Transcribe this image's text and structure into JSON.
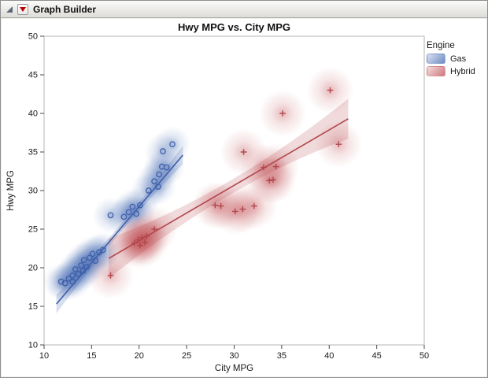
{
  "window": {
    "title": "Graph Builder"
  },
  "chart_data": {
    "type": "scatter",
    "title": "Hwy MPG vs. City MPG",
    "xlabel": "City MPG",
    "ylabel": "Hwy MPG",
    "xlim": [
      10,
      50
    ],
    "ylim": [
      10,
      50
    ],
    "xticks": [
      10,
      15,
      20,
      25,
      30,
      35,
      40,
      45,
      50
    ],
    "yticks": [
      10,
      15,
      20,
      25,
      30,
      35,
      40,
      45,
      50
    ],
    "grid": false,
    "legend": {
      "title": "Engine",
      "position": "right"
    },
    "series": [
      {
        "name": "Gas",
        "marker": "circle",
        "color": "#3E5FA9",
        "density_color": "#4A6FB5",
        "density_radius": 23,
        "points": [
          [
            11.8,
            18.2
          ],
          [
            12.2,
            18.0
          ],
          [
            12.6,
            18.6
          ],
          [
            13.0,
            19.0
          ],
          [
            13.0,
            18.2
          ],
          [
            13.3,
            19.8
          ],
          [
            13.6,
            19.2
          ],
          [
            13.9,
            20.3
          ],
          [
            14.1,
            19.6
          ],
          [
            14.2,
            21.0
          ],
          [
            14.5,
            20.1
          ],
          [
            14.8,
            21.3
          ],
          [
            15.1,
            21.8
          ],
          [
            15.4,
            20.9
          ],
          [
            15.8,
            22.0
          ],
          [
            16.2,
            22.3
          ],
          [
            17.0,
            26.8
          ],
          [
            18.4,
            26.6
          ],
          [
            18.9,
            27.2
          ],
          [
            19.3,
            27.9
          ],
          [
            19.7,
            27.0
          ],
          [
            20.1,
            28.1
          ],
          [
            21.0,
            30.0
          ],
          [
            21.6,
            31.2
          ],
          [
            22.0,
            30.5
          ],
          [
            22.1,
            32.1
          ],
          [
            22.4,
            33.1
          ],
          [
            22.9,
            33.0
          ],
          [
            22.5,
            35.1
          ],
          [
            23.5,
            36.0
          ]
        ],
        "fit": {
          "x": [
            11.3,
            24.6
          ],
          "y": [
            15.3,
            34.6
          ],
          "band_mid": 0.5,
          "band_end": 1.2
        }
      },
      {
        "name": "Hybrid",
        "marker": "plus",
        "color": "#B2474D",
        "density_color": "#C4565B",
        "density_radius": 30,
        "points": [
          [
            17.0,
            19.0
          ],
          [
            19.5,
            23.2
          ],
          [
            19.9,
            23.6
          ],
          [
            20.3,
            23.9
          ],
          [
            20.6,
            23.3
          ],
          [
            20.1,
            22.9
          ],
          [
            20.8,
            24.1
          ],
          [
            21.6,
            25.0
          ],
          [
            28.0,
            28.1
          ],
          [
            28.6,
            28.0
          ],
          [
            30.1,
            27.3
          ],
          [
            30.9,
            27.6
          ],
          [
            31.0,
            35.0
          ],
          [
            32.1,
            28.0
          ],
          [
            33.1,
            33.0
          ],
          [
            34.4,
            33.1
          ],
          [
            33.7,
            31.3
          ],
          [
            34.1,
            31.4
          ],
          [
            35.1,
            40.0
          ],
          [
            40.1,
            43.0
          ],
          [
            41.0,
            36.0
          ]
        ],
        "fit": {
          "x": [
            16.8,
            42.0
          ],
          "y": [
            21.2,
            39.3
          ],
          "band_mid": 0.9,
          "band_end": 2.6
        }
      }
    ]
  }
}
